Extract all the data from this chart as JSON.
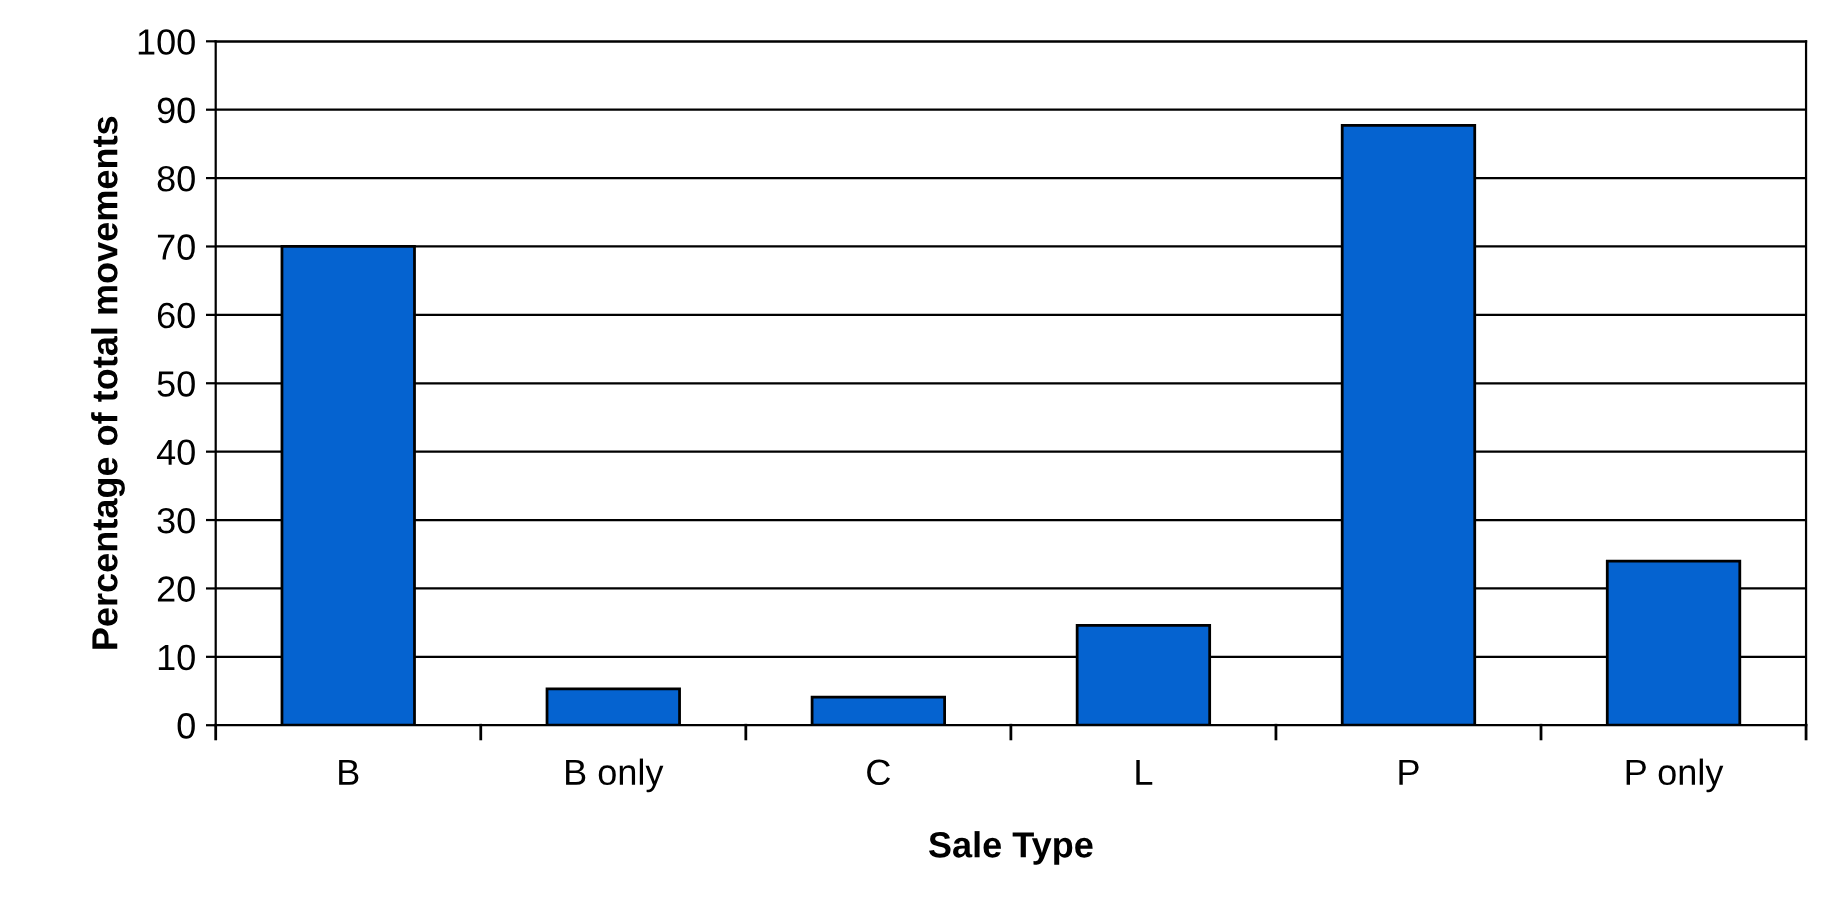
{
  "chart_data": {
    "type": "bar",
    "xlabel": "Sale Type",
    "ylabel": "Percentage of total movements",
    "categories": [
      "B",
      "B only",
      "C",
      "L",
      "P",
      "P only"
    ],
    "values": [
      70,
      5.3,
      4.1,
      14.6,
      87.7,
      24
    ],
    "color": "#0563d0",
    "ylim": [
      0,
      100
    ],
    "yticks": [
      0,
      10,
      20,
      30,
      40,
      50,
      60,
      70,
      80,
      90,
      100
    ],
    "grid": "y"
  }
}
